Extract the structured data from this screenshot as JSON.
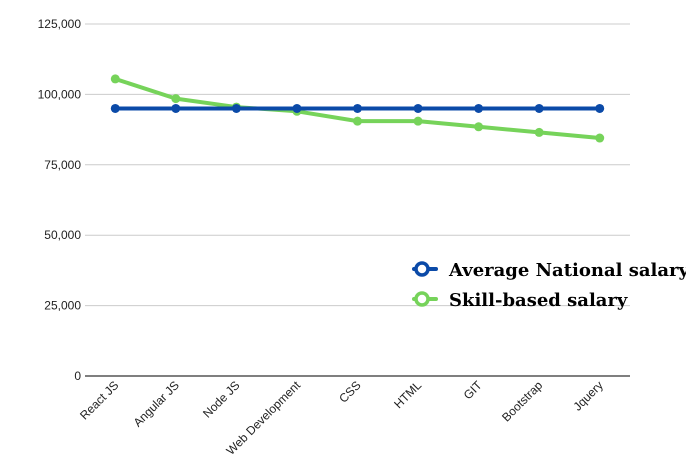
{
  "chart_data": {
    "type": "line",
    "title": "",
    "xlabel": "",
    "ylabel": "",
    "categories": [
      "React JS",
      "Angular JS",
      "Node JS",
      "Web Development",
      "CSS",
      "HTML",
      "GIT",
      "Bootstrap",
      "Jquery"
    ],
    "ylim": [
      0,
      125000
    ],
    "yticks": [
      {
        "value": 0,
        "label": "0"
      },
      {
        "value": 25000,
        "label": "25,000"
      },
      {
        "value": 50000,
        "label": "50,000"
      },
      {
        "value": 75000,
        "label": "75,000"
      },
      {
        "value": 100000,
        "label": "100,000"
      },
      {
        "value": 125000,
        "label": "125,000"
      }
    ],
    "grid": true,
    "legend_position": "right",
    "series": [
      {
        "name": "Average National salary",
        "color": "#0b4aa8",
        "values": [
          95000,
          95000,
          95000,
          95000,
          95000,
          95000,
          95000,
          95000,
          95000
        ]
      },
      {
        "name": "Skill-based salary",
        "color": "#76d35a",
        "values": [
          105500,
          98500,
          95500,
          94000,
          90500,
          90500,
          88500,
          86500,
          84500
        ]
      }
    ]
  }
}
